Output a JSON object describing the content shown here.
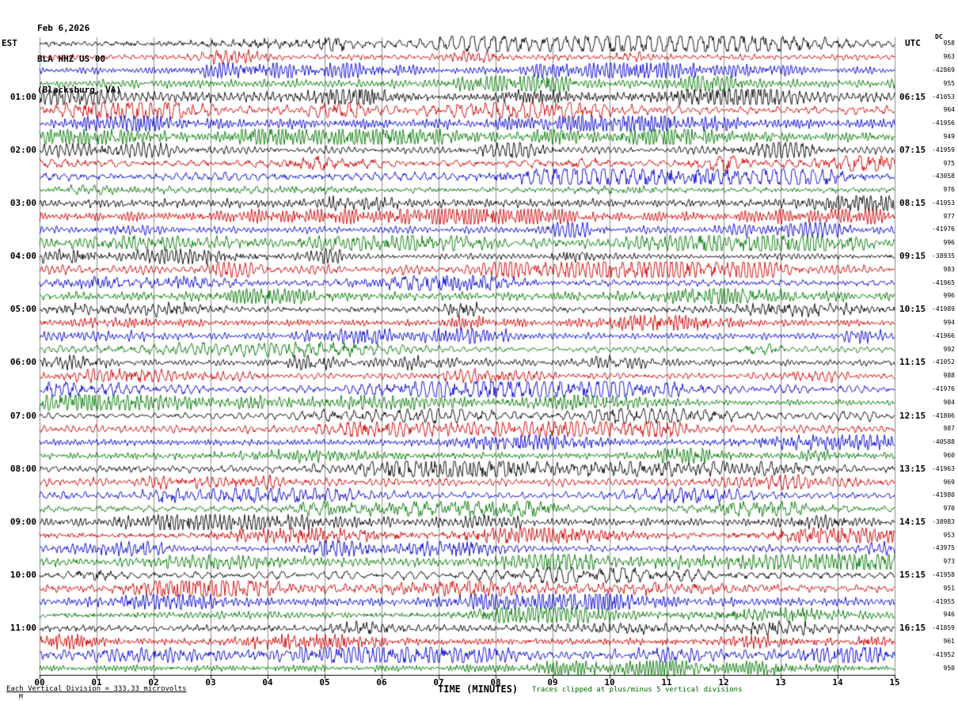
{
  "header": {
    "date": "Feb 6,2026",
    "station": "BLA HHZ US 00",
    "location": "(Blacksburg, VA)"
  },
  "axis_headers": {
    "left": "EST",
    "right": "UTC",
    "dc": "DC"
  },
  "footer": {
    "scale_note": "Each Vertical Division =  333.33 microvolts",
    "clip_note": "Traces clipped at plus/minus 5 vertical divisions",
    "corner_mark": "M"
  },
  "chart_data": {
    "type": "seismogram",
    "title": "BLA HHZ US 00 (Blacksburg, VA) Feb 6,2026 helicorder",
    "timezone_left": "EST",
    "timezone_right": "UTC",
    "minutes_per_line": 15,
    "lines_per_hour": 4,
    "x_axis": {
      "title": "TIME (MINUTES)",
      "ticks": [
        "00",
        "01",
        "02",
        "03",
        "04",
        "05",
        "06",
        "07",
        "08",
        "09",
        "10",
        "11",
        "12",
        "13",
        "14",
        "15"
      ],
      "range": [
        0,
        15
      ],
      "grid": true
    },
    "trace_color_cycle": [
      "#000000",
      "#cc0000",
      "#0000cc",
      "#007700"
    ],
    "grid_color": "#8c8c8c",
    "clip_divisions": 5,
    "rows": [
      {
        "est": "",
        "utc": "",
        "dc": "958"
      },
      {
        "est": "",
        "utc": "",
        "dc": "963"
      },
      {
        "est": "",
        "utc": "",
        "dc": "-42869"
      },
      {
        "est": "",
        "utc": "",
        "dc": "955"
      },
      {
        "est": "01:00",
        "utc": "06:15",
        "dc": "-41053"
      },
      {
        "est": "",
        "utc": "",
        "dc": "964"
      },
      {
        "est": "",
        "utc": "",
        "dc": "-41956"
      },
      {
        "est": "",
        "utc": "",
        "dc": "949"
      },
      {
        "est": "02:00",
        "utc": "07:15",
        "dc": "-41959"
      },
      {
        "est": "",
        "utc": "",
        "dc": "975"
      },
      {
        "est": "",
        "utc": "",
        "dc": "-43058"
      },
      {
        "est": "",
        "utc": "",
        "dc": "976"
      },
      {
        "est": "03:00",
        "utc": "08:15",
        "dc": "-41953"
      },
      {
        "est": "",
        "utc": "",
        "dc": "977"
      },
      {
        "est": "",
        "utc": "",
        "dc": "-41976"
      },
      {
        "est": "",
        "utc": "",
        "dc": "996"
      },
      {
        "est": "04:00",
        "utc": "09:15",
        "dc": "-38935"
      },
      {
        "est": "",
        "utc": "",
        "dc": "983"
      },
      {
        "est": "",
        "utc": "",
        "dc": "-41965"
      },
      {
        "est": "",
        "utc": "",
        "dc": "996"
      },
      {
        "est": "05:00",
        "utc": "10:15",
        "dc": "-41989"
      },
      {
        "est": "",
        "utc": "",
        "dc": "994"
      },
      {
        "est": "",
        "utc": "",
        "dc": "-41966"
      },
      {
        "est": "",
        "utc": "",
        "dc": "992"
      },
      {
        "est": "06:00",
        "utc": "11:15",
        "dc": "-41052"
      },
      {
        "est": "",
        "utc": "",
        "dc": "988"
      },
      {
        "est": "",
        "utc": "",
        "dc": "-41976"
      },
      {
        "est": "",
        "utc": "",
        "dc": "984"
      },
      {
        "est": "07:00",
        "utc": "12:15",
        "dc": "-41806"
      },
      {
        "est": "",
        "utc": "",
        "dc": "987"
      },
      {
        "est": "",
        "utc": "",
        "dc": "-40588"
      },
      {
        "est": "",
        "utc": "",
        "dc": "960"
      },
      {
        "est": "08:00",
        "utc": "13:15",
        "dc": "-41963"
      },
      {
        "est": "",
        "utc": "",
        "dc": "969"
      },
      {
        "est": "",
        "utc": "",
        "dc": "-41980"
      },
      {
        "est": "",
        "utc": "",
        "dc": "970"
      },
      {
        "est": "09:00",
        "utc": "14:15",
        "dc": "-38983"
      },
      {
        "est": "",
        "utc": "",
        "dc": "953"
      },
      {
        "est": "",
        "utc": "",
        "dc": "-43975"
      },
      {
        "est": "",
        "utc": "",
        "dc": "973"
      },
      {
        "est": "10:00",
        "utc": "15:15",
        "dc": "-41958"
      },
      {
        "est": "",
        "utc": "",
        "dc": "951"
      },
      {
        "est": "",
        "utc": "",
        "dc": "-41955"
      },
      {
        "est": "",
        "utc": "",
        "dc": "946"
      },
      {
        "est": "11:00",
        "utc": "16:15",
        "dc": "-41859"
      },
      {
        "est": "",
        "utc": "",
        "dc": "961"
      },
      {
        "est": "",
        "utc": "",
        "dc": "-41952"
      },
      {
        "est": "",
        "utc": "",
        "dc": "950"
      }
    ]
  }
}
